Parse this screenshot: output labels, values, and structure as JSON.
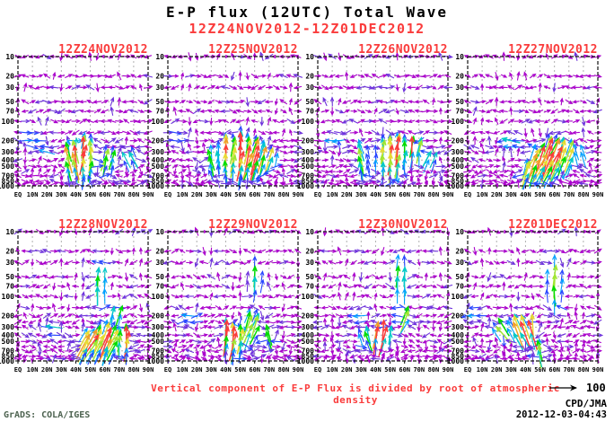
{
  "header": {
    "title": "E-P flux (12UTC) Total Wave",
    "subtitle": "12Z24NOV2012-12Z01DEC2012"
  },
  "footer": {
    "caption": "Vertical component of E-P Flux is divided by root of atmospheric density",
    "ref_label": "100",
    "credit": "CPD/JMA",
    "timestamp": "2012-12-03-04:43",
    "grads_stamp": "GrADS: COLA/IGES"
  },
  "colors": {
    "accent_red": "#fa3c3c",
    "frame": "#111111",
    "grid": "#b0b0b0",
    "tick_text": "#000000",
    "stamp_green": "#4d6350",
    "magnitude_palette": [
      "#aa00cc",
      "#6e32dc",
      "#2846ff",
      "#00a0ff",
      "#00c8c8",
      "#00dc00",
      "#a0e632",
      "#e6dc32",
      "#f0a028",
      "#fa3c3c"
    ],
    "magnitude_thresholds": [
      0.2,
      0.3,
      0.4,
      0.5,
      0.6,
      0.7,
      0.78,
      0.86,
      0.93
    ]
  },
  "chart_data": {
    "type": "quiver",
    "title": "E-P flux (12UTC) Total Wave",
    "period": "12Z24NOV2012-12Z01DEC2012",
    "y_scale": "log-pressure-hPa",
    "ylim": [
      10,
      1000
    ],
    "xlim_deg_lat": [
      0,
      90
    ],
    "grid": true,
    "reference_arrow_value": 100,
    "x_tick_values": [
      0,
      10,
      20,
      30,
      40,
      50,
      60,
      70,
      80,
      90
    ],
    "x_tick_labels": [
      "EQ",
      "10N",
      "20N",
      "30N",
      "40N",
      "50N",
      "60N",
      "70N",
      "80N",
      "90N"
    ],
    "y_tick_values": [
      10,
      20,
      30,
      50,
      70,
      100,
      200,
      300,
      400,
      500,
      700,
      850,
      1000
    ],
    "y_tick_labels": [
      "10",
      "20",
      "30",
      "50",
      "70",
      "100",
      "200",
      "300",
      "400",
      "500",
      "700",
      "850",
      "1000"
    ],
    "grid_h_pressures": [
      20,
      30,
      50,
      70,
      100,
      200,
      300,
      400,
      500,
      700
    ],
    "grid_v_lats": [
      10,
      20,
      30,
      40,
      50,
      60,
      70,
      80
    ],
    "arrow_levels_hpa": [
      10,
      20,
      30,
      50,
      70,
      100,
      150,
      200,
      250,
      300,
      400,
      500,
      600,
      700,
      850,
      925
    ],
    "arrow_lat_step_deg": 5,
    "panels": [
      {
        "date": "12Z24NOV2012",
        "hotspots": [
          {
            "lat": 46,
            "wl": 6,
            "pt": 170,
            "pb": 900,
            "s": 1.05,
            "tilt": 5
          },
          {
            "lat": 37,
            "wl": 4,
            "pt": 200,
            "pb": 850,
            "s": 0.8,
            "tilt": -8
          },
          {
            "lat": 62,
            "wl": 5,
            "pt": 250,
            "pb": 700,
            "s": 0.62,
            "tilt": 12
          },
          {
            "lat": 78,
            "wl": 5,
            "pt": 280,
            "pb": 550,
            "s": 0.52,
            "tilt": -25
          },
          {
            "lat": 8,
            "wl": 7,
            "pt": 150,
            "pb": 230,
            "s": 0.36,
            "dir": "right"
          },
          {
            "lat": 20,
            "wl": 5,
            "pt": 230,
            "pb": 380,
            "s": 0.3,
            "dir": "left"
          }
        ]
      },
      {
        "date": "12Z25NOV2012",
        "hotspots": [
          {
            "lat": 50,
            "wl": 5,
            "pt": 150,
            "pb": 950,
            "s": 1.0,
            "tilt": 6
          },
          {
            "lat": 60,
            "wl": 6,
            "pt": 200,
            "pb": 800,
            "s": 0.9,
            "tilt": 15
          },
          {
            "lat": 40,
            "wl": 5,
            "pt": 160,
            "pb": 900,
            "s": 0.85,
            "tilt": -4
          },
          {
            "lat": 70,
            "wl": 5,
            "pt": 280,
            "pb": 600,
            "s": 0.65,
            "tilt": 18
          },
          {
            "lat": 30,
            "wl": 4,
            "pt": 250,
            "pb": 750,
            "s": 0.5,
            "tilt": -10
          },
          {
            "lat": 7,
            "wl": 6,
            "pt": 150,
            "pb": 220,
            "s": 0.33,
            "dir": "right"
          }
        ]
      },
      {
        "date": "12Z26NOV2012",
        "hotspots": [
          {
            "lat": 48,
            "wl": 7,
            "pt": 170,
            "pb": 900,
            "s": 0.85,
            "tilt": 3
          },
          {
            "lat": 67,
            "wl": 4,
            "pt": 200,
            "pb": 450,
            "s": 1.0,
            "tilt": 8
          },
          {
            "lat": 57,
            "wl": 4,
            "pt": 160,
            "pb": 700,
            "s": 0.75,
            "tilt": 5
          },
          {
            "lat": 31,
            "wl": 4,
            "pt": 200,
            "pb": 850,
            "s": 0.6,
            "tilt": -12
          },
          {
            "lat": 77,
            "wl": 4,
            "pt": 280,
            "pb": 600,
            "s": 0.6,
            "tilt": 20
          },
          {
            "lat": 12,
            "wl": 5,
            "pt": 160,
            "pb": 240,
            "s": 0.32,
            "dir": "left"
          }
        ]
      },
      {
        "date": "12Z27NOV2012",
        "hotspots": [
          {
            "lat": 57,
            "wl": 6,
            "pt": 180,
            "pb": 900,
            "s": 1.05,
            "tilt": 25
          },
          {
            "lat": 47,
            "wl": 5,
            "pt": 250,
            "pb": 950,
            "s": 0.85,
            "tilt": 25
          },
          {
            "lat": 68,
            "wl": 5,
            "pt": 200,
            "pb": 650,
            "s": 0.8,
            "tilt": 18
          },
          {
            "lat": 78,
            "wl": 4,
            "pt": 250,
            "pb": 500,
            "s": 0.6,
            "tilt": -15
          },
          {
            "lat": 40,
            "wl": 4,
            "pt": 500,
            "pb": 950,
            "s": 0.6,
            "tilt": 15
          },
          {
            "lat": 30,
            "wl": 6,
            "pt": 170,
            "pb": 280,
            "s": 0.42,
            "dir": "left"
          }
        ]
      },
      {
        "date": "12Z28NOV2012",
        "hotspots": [
          {
            "lat": 60,
            "wl": 8,
            "pt": 280,
            "pb": 1000,
            "s": 1.0,
            "tilt": 22
          },
          {
            "lat": 47,
            "wl": 5,
            "pt": 350,
            "pb": 1000,
            "s": 0.85,
            "tilt": 28
          },
          {
            "lat": 74,
            "wl": 4,
            "pt": 300,
            "pb": 950,
            "s": 0.9,
            "tilt": 5
          },
          {
            "lat": 57,
            "wl": 5,
            "pt": 25,
            "pb": 180,
            "s": 0.55,
            "tilt": 3
          },
          {
            "lat": 68,
            "wl": 4,
            "pt": 150,
            "pb": 280,
            "s": 0.6,
            "tilt": 10
          },
          {
            "lat": 25,
            "wl": 5,
            "pt": 260,
            "pb": 400,
            "s": 0.38,
            "dir": "left"
          }
        ]
      },
      {
        "date": "12Z29NOV2012",
        "hotspots": [
          {
            "lat": 46,
            "wl": 6,
            "pt": 280,
            "pb": 1000,
            "s": 0.9,
            "tilt": 6
          },
          {
            "lat": 40,
            "wl": 3,
            "pt": 300,
            "pb": 550,
            "s": 1.0,
            "tilt": 2
          },
          {
            "lat": 57,
            "wl": 5,
            "pt": 160,
            "pb": 600,
            "s": 0.75,
            "tilt": 20
          },
          {
            "lat": 60,
            "wl": 5,
            "pt": 25,
            "pb": 130,
            "s": 0.5,
            "tilt": 4
          },
          {
            "lat": 70,
            "wl": 4,
            "pt": 300,
            "pb": 650,
            "s": 0.6,
            "tilt": -18
          },
          {
            "lat": 15,
            "wl": 6,
            "pt": 170,
            "pb": 280,
            "s": 0.3,
            "dir": "left"
          }
        ]
      },
      {
        "date": "12Z30NOV2012",
        "hotspots": [
          {
            "lat": 57,
            "wl": 5,
            "pt": 20,
            "pb": 160,
            "s": 0.62,
            "tilt": 2
          },
          {
            "lat": 60,
            "wl": 4,
            "pt": 160,
            "pb": 350,
            "s": 0.6,
            "tilt": 25
          },
          {
            "lat": 45,
            "wl": 6,
            "pt": 300,
            "pb": 650,
            "s": 0.8,
            "tilt": 10
          },
          {
            "lat": 42,
            "wl": 2.5,
            "pt": 380,
            "pb": 550,
            "s": 1.0,
            "tilt": 3
          },
          {
            "lat": 33,
            "wl": 4,
            "pt": 350,
            "pb": 600,
            "s": 0.55,
            "tilt": -20
          },
          {
            "lat": 28,
            "wl": 5,
            "pt": 160,
            "pb": 260,
            "s": 0.33,
            "dir": "left"
          }
        ]
      },
      {
        "date": "12Z01DEC2012",
        "hotspots": [
          {
            "lat": 60,
            "wl": 5,
            "pt": 20,
            "pb": 220,
            "s": 0.65,
            "tilt": 2
          },
          {
            "lat": 37,
            "wl": 6,
            "pt": 220,
            "pb": 600,
            "s": 0.95,
            "tilt": -25
          },
          {
            "lat": 45,
            "wl": 3.5,
            "pt": 260,
            "pb": 520,
            "s": 1.0,
            "tilt": -10
          },
          {
            "lat": 24,
            "wl": 5,
            "pt": 260,
            "pb": 480,
            "s": 0.6,
            "tilt": -35
          },
          {
            "lat": 50,
            "wl": 4,
            "pt": 600,
            "pb": 1000,
            "s": 0.6,
            "tilt": -5
          },
          {
            "lat": 5,
            "wl": 6,
            "pt": 150,
            "pb": 260,
            "s": 0.32,
            "dir": "left"
          }
        ]
      }
    ]
  }
}
